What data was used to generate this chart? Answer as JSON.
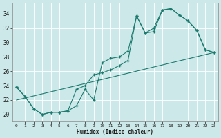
{
  "xlabel": "Humidex (Indice chaleur)",
  "background_color": "#cce8e8",
  "grid_color": "#ffffff",
  "line_color": "#1a7a6e",
  "xlim": [
    -0.5,
    23.5
  ],
  "ylim": [
    19.0,
    35.5
  ],
  "xticks": [
    0,
    1,
    2,
    3,
    4,
    5,
    6,
    7,
    8,
    9,
    10,
    11,
    12,
    13,
    14,
    15,
    16,
    17,
    18,
    19,
    20,
    21,
    22,
    23
  ],
  "yticks": [
    20,
    22,
    24,
    26,
    28,
    30,
    32,
    34
  ],
  "line1_x": [
    0,
    1,
    2,
    3,
    4,
    5,
    6,
    7,
    8,
    9,
    10,
    11,
    12,
    13,
    14,
    15,
    16,
    17,
    18,
    19,
    20,
    21,
    22,
    23
  ],
  "line1_y": [
    23.8,
    22.5,
    20.8,
    20.0,
    20.3,
    20.3,
    20.5,
    21.2,
    23.5,
    22.0,
    27.2,
    27.8,
    28.0,
    28.8,
    33.7,
    31.3,
    31.5,
    34.5,
    34.7,
    33.8,
    33.0,
    31.7,
    29.0,
    28.6
  ],
  "line2_x": [
    0,
    1,
    2,
    3,
    4,
    5,
    6,
    7,
    8,
    9,
    10,
    11,
    12,
    13,
    14,
    15,
    16,
    17,
    18,
    19,
    20,
    21,
    22,
    23
  ],
  "line2_y": [
    23.8,
    22.5,
    20.8,
    20.0,
    20.3,
    20.3,
    20.5,
    23.5,
    24.0,
    25.5,
    25.8,
    26.2,
    26.8,
    27.5,
    33.7,
    31.3,
    32.0,
    34.5,
    34.7,
    33.8,
    33.0,
    31.7,
    29.0,
    28.6
  ],
  "line3_x": [
    0,
    23
  ],
  "line3_y": [
    22.0,
    28.6
  ]
}
